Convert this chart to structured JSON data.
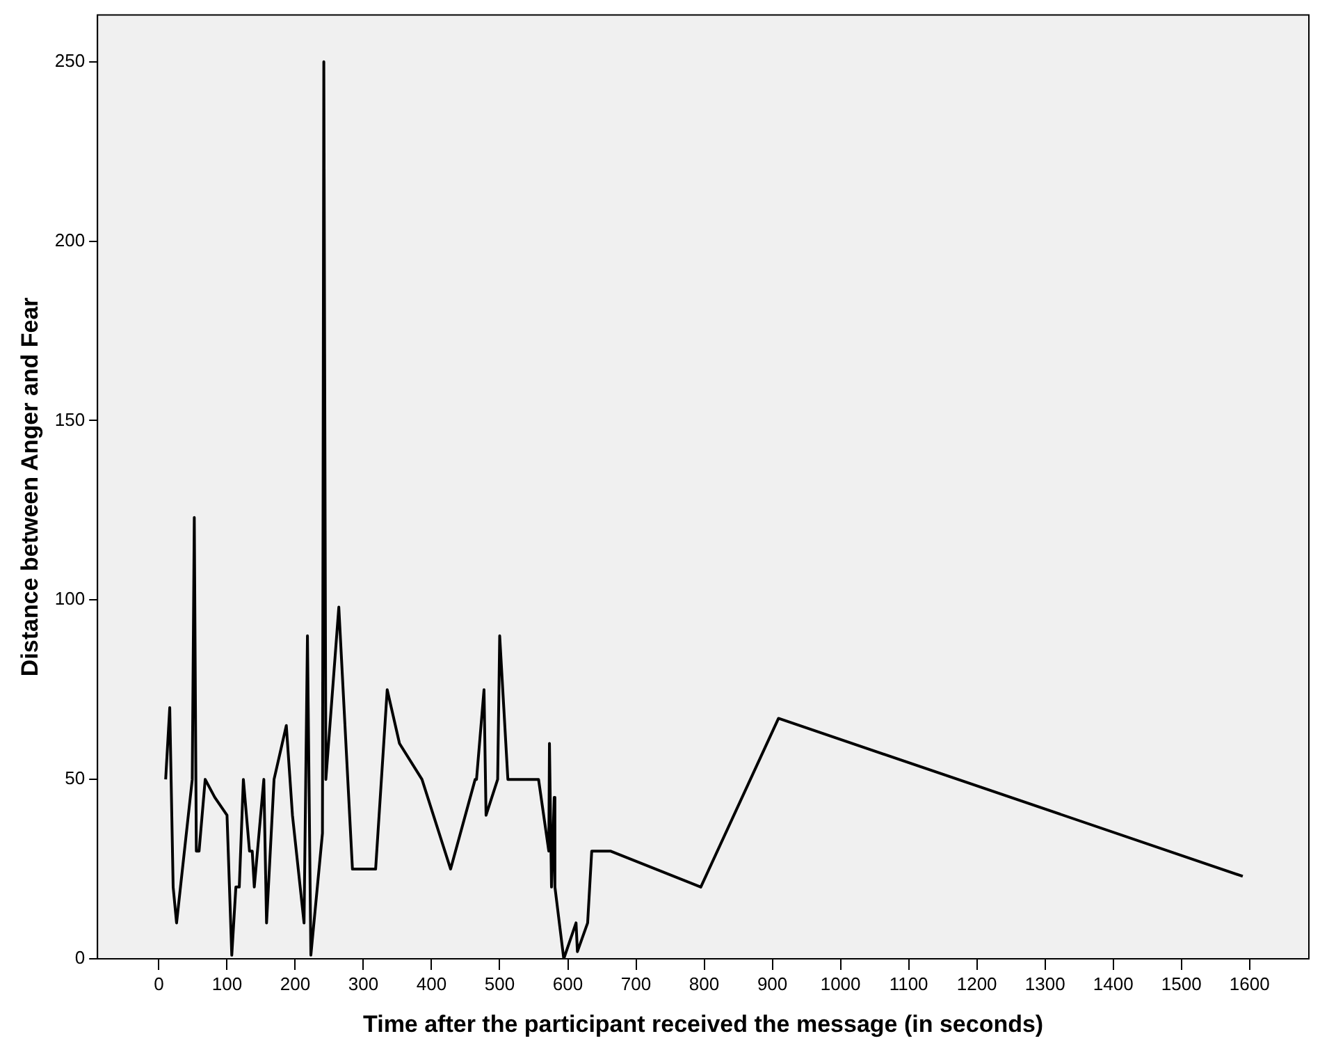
{
  "chart_data": {
    "type": "line",
    "xlabel": "Time after the participant received the message (in seconds)",
    "ylabel": "Distance between Anger and Fear",
    "xlim": [
      -90,
      1687
    ],
    "ylim": [
      0,
      263
    ],
    "xticks": [
      0,
      100,
      200,
      300,
      400,
      500,
      600,
      700,
      800,
      900,
      1000,
      1100,
      1200,
      1300,
      1400,
      1500,
      1600
    ],
    "yticks": [
      0,
      50,
      100,
      150,
      200,
      250
    ],
    "grid": false,
    "legend": false,
    "marker": "none",
    "line_style": "solid",
    "series": [
      {
        "color": "#000000",
        "x": [
          10,
          16,
          21,
          26,
          49,
          52,
          55,
          59,
          68,
          82,
          100,
          107,
          113,
          118,
          124,
          133,
          137,
          140,
          154,
          158,
          169,
          187,
          196,
          213,
          218,
          223,
          240,
          242,
          245,
          264,
          284,
          318,
          335,
          353,
          386,
          428,
          464,
          466,
          477,
          480,
          497,
          500,
          512,
          557,
          572,
          573,
          576,
          580,
          581,
          594,
          612,
          614,
          629,
          635,
          651,
          663,
          795,
          909,
          1590
        ],
        "values": [
          50,
          70,
          20,
          10,
          50,
          123,
          30,
          30,
          50,
          45,
          40,
          1,
          20,
          20,
          50,
          30,
          30,
          20,
          50,
          10,
          50,
          65,
          40,
          10,
          90,
          1,
          35,
          250,
          50,
          98,
          25,
          25,
          75,
          60,
          50,
          25,
          50,
          50,
          75,
          40,
          50,
          90,
          50,
          50,
          30,
          60,
          20,
          45,
          20,
          0,
          10,
          2,
          10,
          30,
          30,
          30,
          20,
          67,
          23
        ]
      }
    ]
  }
}
